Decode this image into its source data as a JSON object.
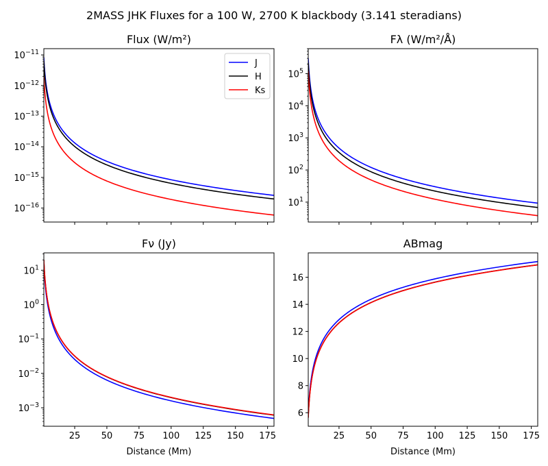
{
  "figure": {
    "title": "2MASS JHK Fluxes for a 100 W, 2700 K blackbody (3.141 steradians)"
  },
  "colors": {
    "J": "#0000ff",
    "H": "#000000",
    "Ks": "#ff0000"
  },
  "chart_data": [
    {
      "type": "line",
      "title": "Flux (W/m²)",
      "xlabel": "",
      "ylabel": "",
      "yscale": "log",
      "xlim": [
        1,
        180
      ],
      "ylim": [
        3.5e-17,
        1.6e-11
      ],
      "xticks": [
        25,
        50,
        75,
        100,
        125,
        150,
        175
      ],
      "xticklabels_shown": false,
      "yticks": [
        {
          "value": 1e-11,
          "base": "10",
          "exp": "−11"
        },
        {
          "value": 1e-12,
          "base": "10",
          "exp": "−12"
        },
        {
          "value": 1e-13,
          "base": "10",
          "exp": "−13"
        },
        {
          "value": 1e-14,
          "base": "10",
          "exp": "−14"
        },
        {
          "value": 1e-15,
          "base": "10",
          "exp": "−15"
        },
        {
          "value": 1e-16,
          "base": "10",
          "exp": "−16"
        }
      ],
      "legend": {
        "position": "top-right",
        "entries": [
          "J",
          "H",
          "Ks"
        ]
      },
      "series": [
        {
          "name": "J",
          "x": [
            1,
            180
          ],
          "y": [
            8.3e-12,
            2.6e-16
          ]
        },
        {
          "name": "H",
          "x": [
            1,
            180
          ],
          "y": [
            6.4e-12,
            1.98e-16
          ]
        },
        {
          "name": "Ks",
          "x": [
            1,
            180
          ],
          "y": [
            1.9e-12,
            5.9e-17
          ]
        }
      ]
    },
    {
      "type": "line",
      "title": "Fλ (W/m²/Å)",
      "xlabel": "",
      "ylabel": "",
      "yscale": "log",
      "xlim": [
        1,
        180
      ],
      "ylim": [
        2.4,
        600000.0
      ],
      "xticks": [
        25,
        50,
        75,
        100,
        125,
        150,
        175
      ],
      "xticklabels_shown": false,
      "yticks": [
        {
          "value": 100000.0,
          "base": "10",
          "exp": "5"
        },
        {
          "value": 10000.0,
          "base": "10",
          "exp": "4"
        },
        {
          "value": 1000.0,
          "base": "10",
          "exp": "3"
        },
        {
          "value": 100.0,
          "base": "10",
          "exp": "2"
        },
        {
          "value": 10.0,
          "base": "10",
          "exp": "1"
        }
      ],
      "series": [
        {
          "name": "J",
          "x": [
            1,
            180
          ],
          "y": [
            300000.0,
            9.3
          ]
        },
        {
          "name": "H",
          "x": [
            1,
            180
          ],
          "y": [
            220000.0,
            6.8
          ]
        },
        {
          "name": "Ks",
          "x": [
            1,
            180
          ],
          "y": [
            120000.0,
            3.8
          ]
        }
      ]
    },
    {
      "type": "line",
      "title": "Fν (Jy)",
      "xlabel": "Distance (Mm)",
      "ylabel": "",
      "yscale": "log",
      "xlim": [
        1,
        180
      ],
      "ylim": [
        0.00029,
        32
      ],
      "xticks": [
        25,
        50,
        75,
        100,
        125,
        150,
        175
      ],
      "xticklabels_shown": true,
      "yticks": [
        {
          "value": 10,
          "base": "10",
          "exp": "1"
        },
        {
          "value": 1,
          "base": "10",
          "exp": "0"
        },
        {
          "value": 0.1,
          "base": "10",
          "exp": "−1"
        },
        {
          "value": 0.01,
          "base": "10",
          "exp": "−2"
        },
        {
          "value": 0.001,
          "base": "10",
          "exp": "−3"
        }
      ],
      "series": [
        {
          "name": "J",
          "x": [
            1,
            180
          ],
          "y": [
            16.0,
            0.00049
          ]
        },
        {
          "name": "H",
          "x": [
            1,
            180
          ],
          "y": [
            20.0,
            0.00061
          ]
        },
        {
          "name": "Ks",
          "x": [
            1,
            180
          ],
          "y": [
            20.0,
            0.00062
          ]
        }
      ]
    },
    {
      "type": "line",
      "title": "ABmag",
      "xlabel": "Distance (Mm)",
      "ylabel": "",
      "yscale": "linear",
      "xlim": [
        1,
        180
      ],
      "ylim": [
        5,
        17.8
      ],
      "xticks": [
        25,
        50,
        75,
        100,
        125,
        150,
        175
      ],
      "xticklabels_shown": true,
      "yticks": [
        {
          "value": 6,
          "label": "6"
        },
        {
          "value": 8,
          "label": "8"
        },
        {
          "value": 10,
          "label": "10"
        },
        {
          "value": 12,
          "label": "12"
        },
        {
          "value": 14,
          "label": "14"
        },
        {
          "value": 16,
          "label": "16"
        }
      ],
      "series": [
        {
          "name": "J",
          "x": [
            1,
            180
          ],
          "y": [
            5.88,
            17.16
          ]
        },
        {
          "name": "H",
          "x": [
            1,
            180
          ],
          "y": [
            5.64,
            16.92
          ]
        },
        {
          "name": "Ks",
          "x": [
            1,
            180
          ],
          "y": [
            5.63,
            16.91
          ]
        }
      ]
    }
  ]
}
